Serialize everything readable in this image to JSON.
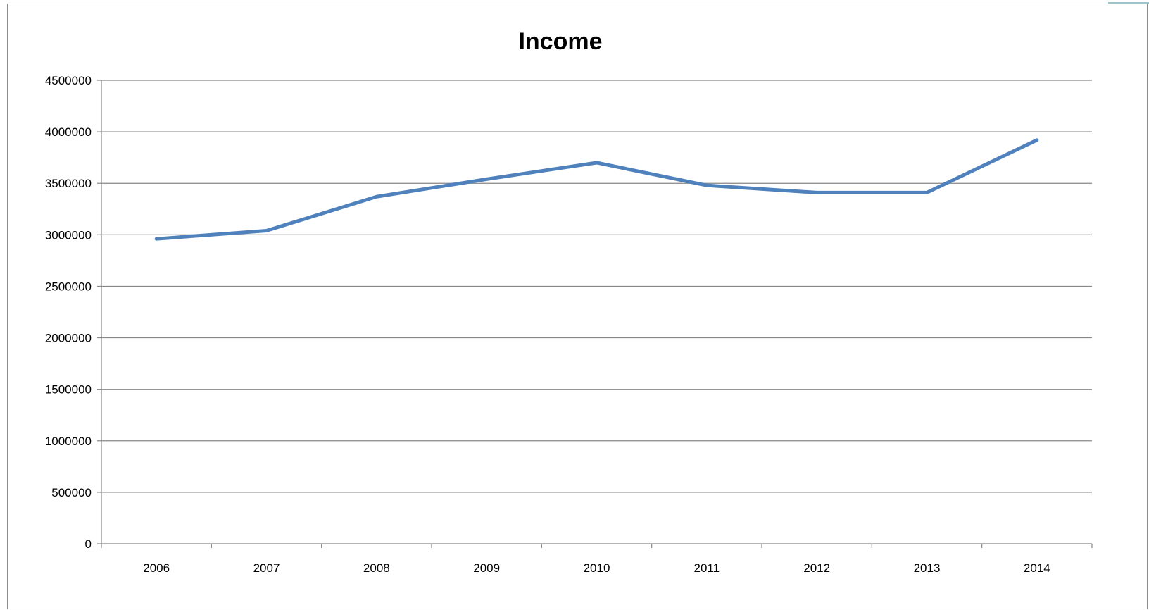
{
  "chart_data": {
    "type": "line",
    "title": "Income",
    "xlabel": "",
    "ylabel": "",
    "categories": [
      "2006",
      "2007",
      "2008",
      "2009",
      "2010",
      "2011",
      "2012",
      "2013",
      "2014"
    ],
    "series": [
      {
        "values": [
          2960000,
          3040000,
          3370000,
          3540000,
          3700000,
          3480000,
          3410000,
          3410000,
          3920000
        ]
      }
    ],
    "ylim": [
      0,
      4500000
    ],
    "yticks": [
      "0",
      "500000",
      "1000000",
      "1500000",
      "2000000",
      "2500000",
      "3000000",
      "3500000",
      "4000000",
      "4500000"
    ],
    "grid": "horizontal",
    "legend": "none",
    "colors": {
      "line": "#4f81bd",
      "grid": "#868686",
      "axis": "#868686",
      "frame": "#8c8c8c"
    }
  }
}
